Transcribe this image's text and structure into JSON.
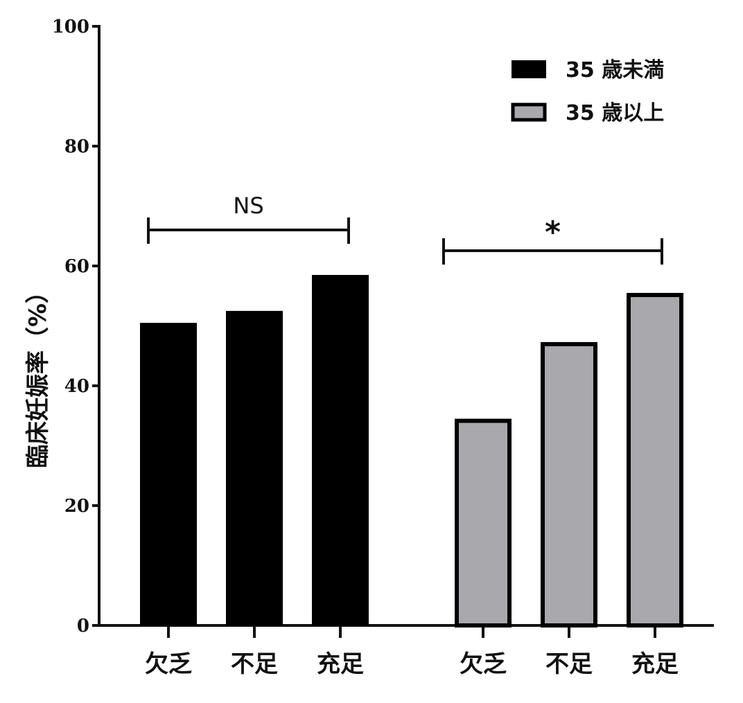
{
  "chart_data": {
    "type": "bar",
    "ylabel": "臨床妊娠率（%）",
    "ylim": [
      0,
      100
    ],
    "yticks": [
      0,
      20,
      40,
      60,
      80,
      100
    ],
    "legend_position": "top-right",
    "groups": [
      {
        "name": "35 歳未満",
        "color": "#000000",
        "categories": [
          "欠乏",
          "不足",
          "充足"
        ],
        "values": [
          50.5,
          52.5,
          58.5
        ],
        "significance": "NS"
      },
      {
        "name": "35 歳以上",
        "color": "#a9a9ad",
        "categories": [
          "欠乏",
          "不足",
          "充足"
        ],
        "values": [
          34.5,
          47.3,
          55.5
        ],
        "significance": "*"
      }
    ]
  }
}
